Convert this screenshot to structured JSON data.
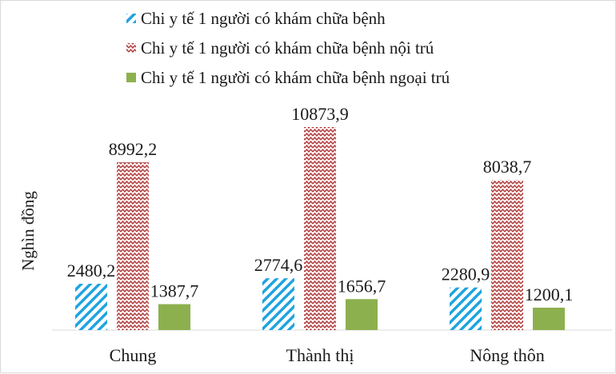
{
  "chart_data": {
    "type": "bar",
    "ylabel": "Nghìn đồng",
    "categories": [
      "Chung",
      "Thành thị",
      "Nông thôn"
    ],
    "series": [
      {
        "name": "Chi y tế 1 người có khám chữa bệnh",
        "values": [
          2480.2,
          2774.6,
          2280.9
        ],
        "labels": [
          "2480,2",
          "2774,6",
          "2280,9"
        ],
        "color": "#1fa3e0",
        "pattern": "diagonal-stripes"
      },
      {
        "name": "Chi y tế 1 người có khám chữa bệnh nội trú",
        "values": [
          8992.2,
          10873.9,
          8038.7
        ],
        "labels": [
          "8992,2",
          "10873,9",
          "8038,7"
        ],
        "color": "#b03a3a",
        "pattern": "zigzag"
      },
      {
        "name": "Chi y tế 1 người có khám chữa bệnh ngoại trú",
        "values": [
          1387.7,
          1656.7,
          1200.1
        ],
        "labels": [
          "1387,7",
          "1656,7",
          "1200,1"
        ],
        "color": "#8db04e",
        "pattern": "solid"
      }
    ],
    "ylim": [
      0,
      12000
    ],
    "grid": false,
    "legend": "top"
  }
}
